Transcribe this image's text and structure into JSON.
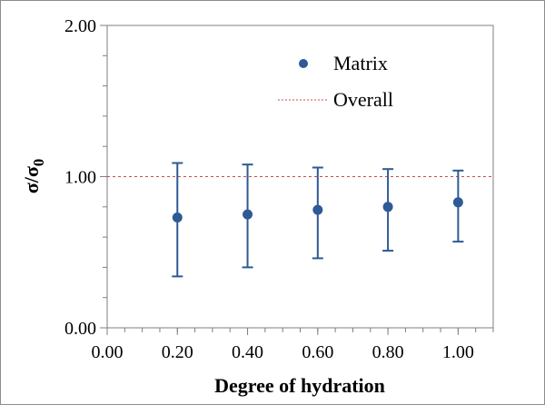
{
  "chart_data": {
    "type": "scatter",
    "xlabel": "Degree of hydration",
    "ylabel": "σ/σ",
    "ylabel_subscript": "0",
    "xlim": [
      0,
      1.1
    ],
    "ylim": [
      0,
      2
    ],
    "x_ticks": [
      "0.00",
      "0.20",
      "0.40",
      "0.60",
      "0.80",
      "1.00"
    ],
    "y_ticks": [
      "0.00",
      "1.00",
      "2.00"
    ],
    "grid": false,
    "legend_position": "top-right",
    "series": [
      {
        "name": "Matrix",
        "kind": "points-with-error-bars",
        "color": "#2e5a95",
        "points": [
          {
            "x": 0.2,
            "y": 0.73,
            "low": 0.34,
            "high": 1.09
          },
          {
            "x": 0.4,
            "y": 0.75,
            "low": 0.4,
            "high": 1.08
          },
          {
            "x": 0.6,
            "y": 0.78,
            "low": 0.46,
            "high": 1.06
          },
          {
            "x": 0.8,
            "y": 0.8,
            "low": 0.51,
            "high": 1.05
          },
          {
            "x": 1.0,
            "y": 0.83,
            "low": 0.57,
            "high": 1.04
          }
        ]
      },
      {
        "name": "Overall",
        "kind": "dashed-line",
        "color": "#c0504d",
        "value": 1.0
      }
    ],
    "axis_color": "#7f7f7f"
  }
}
